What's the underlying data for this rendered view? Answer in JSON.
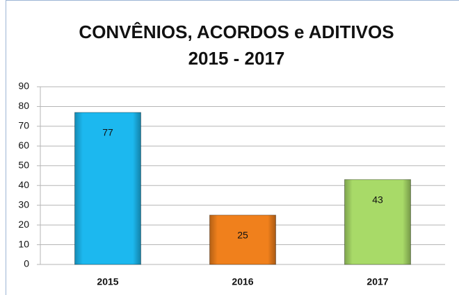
{
  "chart_data": {
    "type": "bar",
    "title": "CONVÊNIOS, ACORDOS e ADITIVOS",
    "subtitle": "2015 - 2017",
    "categories": [
      "2015",
      "2016",
      "2017"
    ],
    "values": [
      77,
      25,
      43
    ],
    "colors": [
      "#1cb8ef",
      "#f0801c",
      "#a8da68"
    ],
    "ylim": [
      0,
      90
    ],
    "yticks": [
      0,
      10,
      20,
      30,
      40,
      50,
      60,
      70,
      80,
      90
    ],
    "grid": true
  }
}
